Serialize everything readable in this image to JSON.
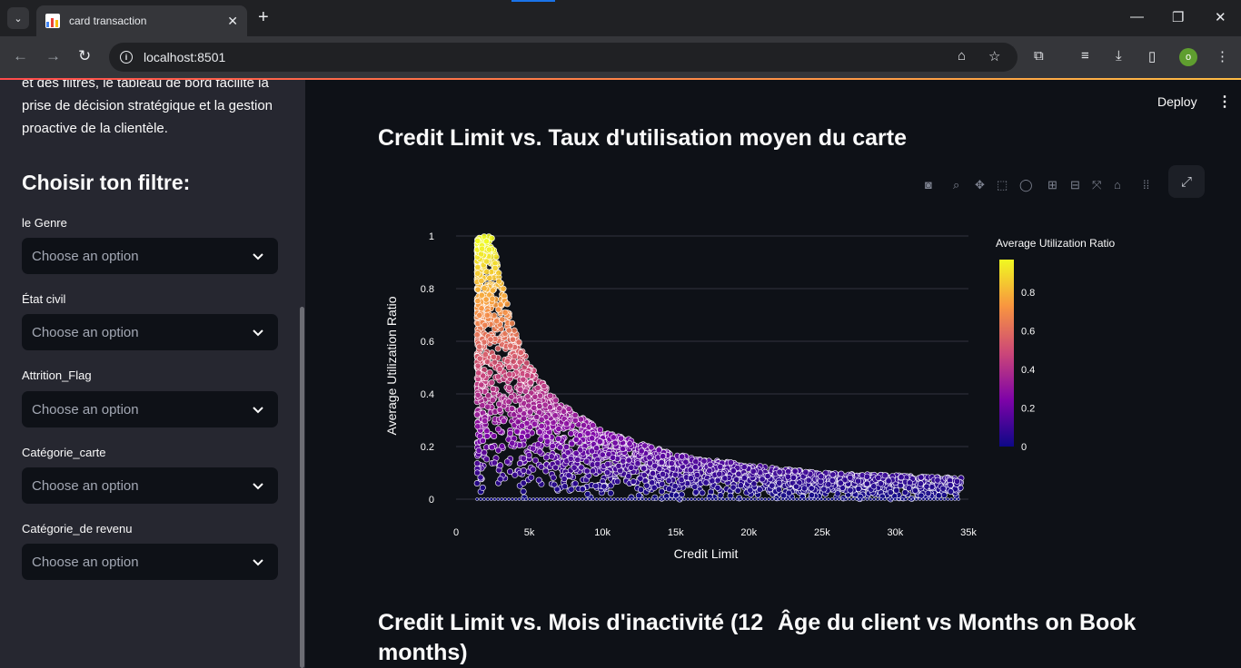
{
  "browser": {
    "tab_title": "card transaction",
    "url": "localhost:8501",
    "profile_initial": "o"
  },
  "app": {
    "deploy_label": "Deploy"
  },
  "sidebar": {
    "intro_text": "et des filtres, le tableau de bord facilite la prise de décision stratégique et la gestion proactive de la clientèle.",
    "heading": "Choisir ton filtre:",
    "filters": [
      {
        "label": "le Genre",
        "placeholder": "Choose an option"
      },
      {
        "label": "État civil",
        "placeholder": "Choose an option"
      },
      {
        "label": "Attrition_Flag",
        "placeholder": "Choose an option"
      },
      {
        "label": "Catégorie_carte",
        "placeholder": "Choose an option"
      },
      {
        "label": "Catégorie_de revenu",
        "placeholder": "Choose an option"
      }
    ]
  },
  "main": {
    "chart_title": "Credit Limit vs. Taux d'utilisation moyen du carte",
    "next_title_left": "Credit Limit vs. Mois d'inactivité (12 months)",
    "next_title_right": "Âge du client vs Months on Book"
  },
  "chart_data": {
    "type": "scatter",
    "title": "",
    "xlabel": "Credit Limit",
    "ylabel": "Average Utilization Ratio",
    "xlim": [
      0,
      35000
    ],
    "ylim": [
      0,
      1
    ],
    "x_ticks": [
      0,
      5000,
      10000,
      15000,
      20000,
      25000,
      30000,
      35000
    ],
    "x_tick_labels": [
      "0",
      "5k",
      "10k",
      "15k",
      "20k",
      "25k",
      "30k",
      "35k"
    ],
    "y_ticks": [
      0,
      0.2,
      0.4,
      0.6,
      0.8,
      1
    ],
    "y_tick_labels": [
      "0",
      "0.2",
      "0.4",
      "0.6",
      "0.8",
      "1"
    ],
    "colorbar": {
      "title": "Average Utilization Ratio",
      "ticks": [
        "0",
        "0.2",
        "0.4",
        "0.6",
        "0.8"
      ],
      "colorscale": "plasma"
    },
    "envelope": {
      "description_points_x": [
        1440,
        2000,
        2500,
        3000,
        4000,
        5000,
        7000,
        10000,
        15000,
        20000,
        25000,
        30000,
        34500
      ],
      "max_y": [
        0.99,
        1.0,
        1.0,
        0.85,
        0.64,
        0.51,
        0.37,
        0.26,
        0.17,
        0.13,
        0.1,
        0.09,
        0.08
      ]
    },
    "grid": true,
    "legend": "right"
  }
}
